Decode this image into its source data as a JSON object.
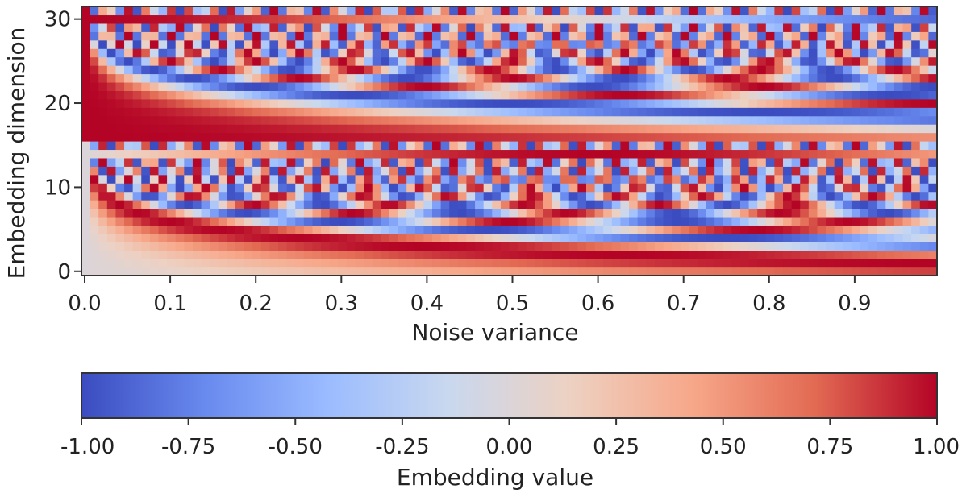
{
  "chart_data": {
    "type": "heatmap",
    "title": "",
    "xlabel": "Noise variance",
    "ylabel": "Embedding dimension",
    "xlim": [
      0.0,
      1.0
    ],
    "ylim": [
      0,
      32
    ],
    "x_ticks": [
      0.0,
      0.1,
      0.2,
      0.3,
      0.4,
      0.5,
      0.6,
      0.7,
      0.8,
      0.9
    ],
    "x_tick_labels": [
      "0.0",
      "0.1",
      "0.2",
      "0.3",
      "0.4",
      "0.5",
      "0.6",
      "0.7",
      "0.8",
      "0.9"
    ],
    "y_ticks": [
      0,
      10,
      20,
      30
    ],
    "y_tick_labels": [
      "0",
      "10",
      "20",
      "30"
    ],
    "n_columns": 100,
    "n_rows": 32,
    "value_function": "sinusoidal embedding: rows 0-15 sin(x*f_i), rows 16-31 cos(x*f_i), f_i = 1000^(i/15)",
    "colormap": "coolwarm",
    "colormap_stops": [
      "#3b4cc0",
      "#6889ee",
      "#9abbff",
      "#c9d8ef",
      "#edd1c2",
      "#f7a789",
      "#e26a53",
      "#b40426"
    ],
    "colorbar": {
      "label": "Embedding value",
      "range": [
        -1.0,
        1.0
      ],
      "ticks": [
        -1.0,
        -0.75,
        -0.5,
        -0.25,
        0.0,
        0.25,
        0.5,
        0.75,
        1.0
      ],
      "tick_labels": [
        "-1.00",
        "-0.75",
        "-0.50",
        "-0.25",
        "0.00",
        "0.25",
        "0.50",
        "0.75",
        "1.00"
      ]
    }
  }
}
